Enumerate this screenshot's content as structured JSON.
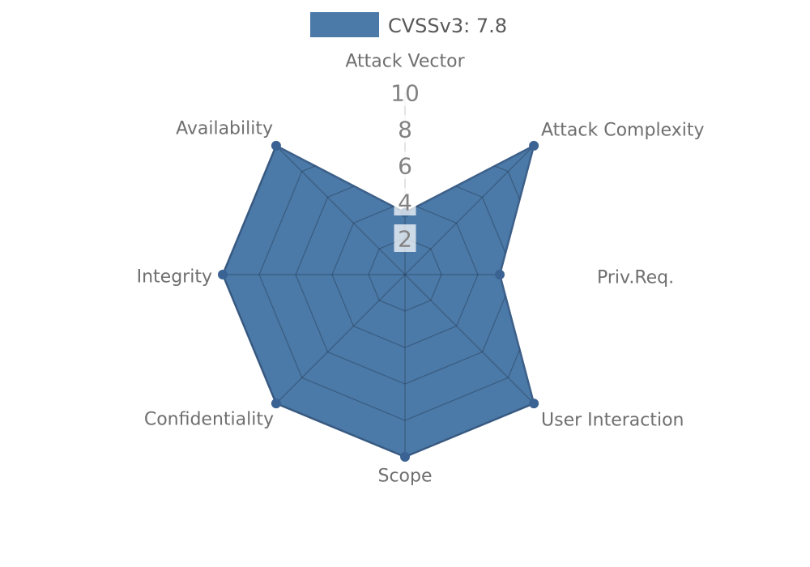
{
  "chart_data": {
    "type": "radar",
    "legend_label": "CVSSv3: 7.8",
    "score": "7.8",
    "categories": [
      "Attack Vector",
      "Attack Complexity",
      "Priv.Req.",
      "User Interaction",
      "Scope",
      "Confidentiality",
      "Integrity",
      "Availability"
    ],
    "values": [
      3.4,
      10,
      5.2,
      10,
      10,
      10,
      10,
      10
    ],
    "radial_ticks": [
      2,
      4,
      6,
      8,
      10
    ],
    "rmin": 0,
    "rmax": 10,
    "grid": "on",
    "legend_position": "top-center",
    "colors": {
      "series_fill": "#4b79a8",
      "series_line": "#3d6089",
      "marker": "#3a6292",
      "grid_line": "#1e2d3c",
      "axis_line": "#d9d9d9",
      "tick_text": "#828282",
      "tick_box_fill": "#ffffff",
      "label_text": "#6f6f6f",
      "legend_text": "#595959",
      "background": "#ffffff"
    }
  }
}
